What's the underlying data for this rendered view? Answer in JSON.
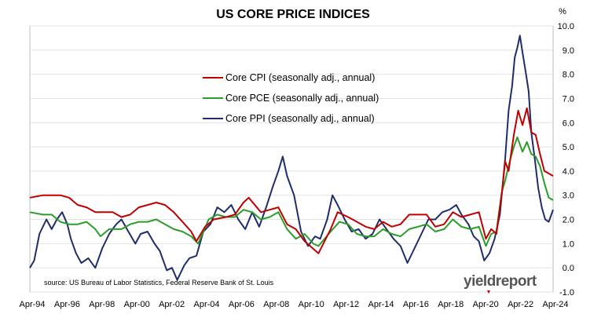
{
  "chart_data": {
    "type": "line",
    "title": "US CORE PRICE INDICES",
    "unit_label": "%",
    "source": "source: US Bureau of Labor Statistics, Federal Reserve Bank of St. Louis",
    "logo_text": "yieldreport",
    "x_tick_labels": [
      "Apr-94",
      "Apr-96",
      "Apr-98",
      "Apr-00",
      "Apr-02",
      "Apr-04",
      "Apr-06",
      "Apr-08",
      "Apr-10",
      "Apr-12",
      "Apr-14",
      "Apr-16",
      "Apr-18",
      "Apr-20",
      "Apr-22",
      "Apr-24"
    ],
    "xlim": [
      1994.25,
      2024.25
    ],
    "ylim": [
      -1.0,
      10.0
    ],
    "y_ticks": [
      "10.0",
      "9.0",
      "8.0",
      "7.0",
      "6.0",
      "5.0",
      "4.0",
      "3.0",
      "2.0",
      "1.0",
      "0.0",
      "-1.0"
    ],
    "y_tick_values": [
      10,
      9,
      8,
      7,
      6,
      5,
      4,
      3,
      2,
      1,
      0,
      -1
    ],
    "legend_position": "upper-left-center",
    "series": [
      {
        "name": "Core CPI (seasonally adj., annual)",
        "color": "#c00000",
        "points": [
          [
            1994.25,
            2.9
          ],
          [
            1995.0,
            3.0
          ],
          [
            1995.5,
            3.0
          ],
          [
            1996.0,
            3.0
          ],
          [
            1996.5,
            2.9
          ],
          [
            1997.0,
            2.6
          ],
          [
            1997.5,
            2.5
          ],
          [
            1998.0,
            2.3
          ],
          [
            1998.5,
            2.3
          ],
          [
            1999.0,
            2.3
          ],
          [
            1999.5,
            2.1
          ],
          [
            2000.0,
            2.2
          ],
          [
            2000.5,
            2.5
          ],
          [
            2001.0,
            2.6
          ],
          [
            2001.5,
            2.7
          ],
          [
            2002.0,
            2.6
          ],
          [
            2002.5,
            2.3
          ],
          [
            2003.0,
            1.9
          ],
          [
            2003.5,
            1.5
          ],
          [
            2003.8,
            1.1
          ],
          [
            2004.3,
            1.7
          ],
          [
            2004.8,
            2.0
          ],
          [
            2005.5,
            2.1
          ],
          [
            2006.0,
            2.2
          ],
          [
            2006.5,
            2.7
          ],
          [
            2006.8,
            2.9
          ],
          [
            2007.5,
            2.3
          ],
          [
            2008.0,
            2.4
          ],
          [
            2008.5,
            2.5
          ],
          [
            2009.0,
            1.8
          ],
          [
            2009.5,
            1.6
          ],
          [
            2010.0,
            1.1
          ],
          [
            2010.8,
            0.6
          ],
          [
            2011.5,
            1.6
          ],
          [
            2011.9,
            2.3
          ],
          [
            2012.5,
            2.1
          ],
          [
            2013.0,
            1.9
          ],
          [
            2013.5,
            1.7
          ],
          [
            2014.0,
            1.6
          ],
          [
            2014.5,
            1.9
          ],
          [
            2015.0,
            1.7
          ],
          [
            2015.5,
            1.8
          ],
          [
            2016.0,
            2.2
          ],
          [
            2016.5,
            2.2
          ],
          [
            2017.0,
            2.2
          ],
          [
            2017.5,
            1.7
          ],
          [
            2018.0,
            1.8
          ],
          [
            2018.5,
            2.3
          ],
          [
            2019.0,
            2.1
          ],
          [
            2019.5,
            2.2
          ],
          [
            2020.0,
            2.3
          ],
          [
            2020.4,
            1.2
          ],
          [
            2020.7,
            1.6
          ],
          [
            2021.0,
            1.4
          ],
          [
            2021.3,
            3.0
          ],
          [
            2021.5,
            4.4
          ],
          [
            2021.7,
            4.0
          ],
          [
            2022.0,
            5.5
          ],
          [
            2022.25,
            6.5
          ],
          [
            2022.5,
            5.9
          ],
          [
            2022.75,
            6.6
          ],
          [
            2023.0,
            5.6
          ],
          [
            2023.25,
            5.5
          ],
          [
            2023.5,
            4.7
          ],
          [
            2023.75,
            4.0
          ],
          [
            2024.0,
            3.9
          ],
          [
            2024.25,
            3.8
          ]
        ]
      },
      {
        "name": "Core PCE (seasonally adj., annual)",
        "color": "#2a9d2a",
        "points": [
          [
            1994.25,
            2.3
          ],
          [
            1995.0,
            2.2
          ],
          [
            1995.5,
            2.2
          ],
          [
            1996.0,
            1.9
          ],
          [
            1996.5,
            1.8
          ],
          [
            1997.0,
            1.8
          ],
          [
            1997.5,
            1.9
          ],
          [
            1998.0,
            1.6
          ],
          [
            1998.3,
            1.3
          ],
          [
            1998.8,
            1.6
          ],
          [
            1999.5,
            1.6
          ],
          [
            2000.0,
            1.8
          ],
          [
            2000.5,
            1.9
          ],
          [
            2001.0,
            1.9
          ],
          [
            2001.5,
            2.0
          ],
          [
            2002.0,
            1.8
          ],
          [
            2002.5,
            1.6
          ],
          [
            2003.0,
            1.5
          ],
          [
            2003.5,
            1.3
          ],
          [
            2003.9,
            1.0
          ],
          [
            2004.5,
            2.0
          ],
          [
            2005.0,
            2.2
          ],
          [
            2005.5,
            2.1
          ],
          [
            2006.0,
            2.1
          ],
          [
            2006.5,
            2.4
          ],
          [
            2007.0,
            2.3
          ],
          [
            2007.5,
            2.0
          ],
          [
            2008.0,
            2.1
          ],
          [
            2008.5,
            2.3
          ],
          [
            2009.0,
            1.6
          ],
          [
            2009.5,
            1.2
          ],
          [
            2010.0,
            1.4
          ],
          [
            2010.5,
            1.0
          ],
          [
            2010.8,
            0.9
          ],
          [
            2011.5,
            1.5
          ],
          [
            2012.0,
            1.9
          ],
          [
            2012.5,
            1.8
          ],
          [
            2013.0,
            1.4
          ],
          [
            2013.5,
            1.3
          ],
          [
            2014.0,
            1.3
          ],
          [
            2014.5,
            1.6
          ],
          [
            2015.0,
            1.4
          ],
          [
            2015.5,
            1.3
          ],
          [
            2016.0,
            1.6
          ],
          [
            2016.5,
            1.7
          ],
          [
            2017.0,
            1.8
          ],
          [
            2017.5,
            1.5
          ],
          [
            2018.0,
            1.6
          ],
          [
            2018.5,
            2.0
          ],
          [
            2019.0,
            1.7
          ],
          [
            2019.5,
            1.6
          ],
          [
            2020.0,
            1.7
          ],
          [
            2020.4,
            0.9
          ],
          [
            2020.7,
            1.4
          ],
          [
            2021.0,
            1.5
          ],
          [
            2021.3,
            3.1
          ],
          [
            2021.5,
            3.6
          ],
          [
            2021.8,
            4.5
          ],
          [
            2022.0,
            5.0
          ],
          [
            2022.2,
            5.4
          ],
          [
            2022.5,
            4.8
          ],
          [
            2022.75,
            5.2
          ],
          [
            2023.0,
            4.7
          ],
          [
            2023.25,
            4.6
          ],
          [
            2023.5,
            4.2
          ],
          [
            2023.75,
            3.5
          ],
          [
            2024.0,
            2.9
          ],
          [
            2024.25,
            2.8
          ]
        ]
      },
      {
        "name": "Core PPI (seasonally adj., annual)",
        "color": "#1f2d6b",
        "points": [
          [
            1994.25,
            0.0
          ],
          [
            1994.5,
            0.3
          ],
          [
            1994.8,
            1.4
          ],
          [
            1995.2,
            2.0
          ],
          [
            1995.5,
            1.6
          ],
          [
            1995.8,
            2.0
          ],
          [
            1996.1,
            2.3
          ],
          [
            1996.4,
            1.8
          ],
          [
            1996.6,
            1.2
          ],
          [
            1996.9,
            0.6
          ],
          [
            1997.2,
            0.2
          ],
          [
            1997.6,
            0.4
          ],
          [
            1998.0,
            0.0
          ],
          [
            1998.4,
            0.8
          ],
          [
            1998.8,
            1.4
          ],
          [
            1999.2,
            1.8
          ],
          [
            1999.5,
            2.0
          ],
          [
            1999.9,
            1.5
          ],
          [
            2000.3,
            1.0
          ],
          [
            2000.6,
            1.4
          ],
          [
            2001.0,
            1.5
          ],
          [
            2001.4,
            1.0
          ],
          [
            2001.7,
            0.7
          ],
          [
            2002.1,
            -0.1
          ],
          [
            2002.4,
            0.0
          ],
          [
            2002.7,
            -0.5
          ],
          [
            2003.1,
            0.1
          ],
          [
            2003.4,
            0.4
          ],
          [
            2003.8,
            0.5
          ],
          [
            2004.2,
            1.5
          ],
          [
            2004.6,
            1.8
          ],
          [
            2005.0,
            2.5
          ],
          [
            2005.4,
            2.3
          ],
          [
            2005.8,
            2.6
          ],
          [
            2006.2,
            2.0
          ],
          [
            2006.6,
            1.6
          ],
          [
            2007.0,
            2.3
          ],
          [
            2007.4,
            1.7
          ],
          [
            2007.8,
            2.5
          ],
          [
            2008.2,
            3.4
          ],
          [
            2008.5,
            4.0
          ],
          [
            2008.75,
            4.6
          ],
          [
            2009.0,
            3.8
          ],
          [
            2009.4,
            3.0
          ],
          [
            2009.8,
            1.5
          ],
          [
            2010.2,
            0.9
          ],
          [
            2010.6,
            1.3
          ],
          [
            2010.9,
            1.2
          ],
          [
            2011.3,
            2.0
          ],
          [
            2011.6,
            3.0
          ],
          [
            2011.9,
            2.6
          ],
          [
            2012.3,
            2.0
          ],
          [
            2012.7,
            1.5
          ],
          [
            2013.1,
            1.6
          ],
          [
            2013.5,
            1.2
          ],
          [
            2013.9,
            1.4
          ],
          [
            2014.3,
            2.0
          ],
          [
            2014.7,
            1.6
          ],
          [
            2015.1,
            1.2
          ],
          [
            2015.5,
            0.9
          ],
          [
            2015.9,
            0.2
          ],
          [
            2016.3,
            0.8
          ],
          [
            2016.7,
            1.4
          ],
          [
            2017.1,
            2.0
          ],
          [
            2017.5,
            2.0
          ],
          [
            2017.9,
            2.3
          ],
          [
            2018.3,
            2.4
          ],
          [
            2018.7,
            2.6
          ],
          [
            2019.0,
            2.2
          ],
          [
            2019.4,
            1.8
          ],
          [
            2019.7,
            1.3
          ],
          [
            2020.0,
            1.1
          ],
          [
            2020.3,
            0.3
          ],
          [
            2020.6,
            0.6
          ],
          [
            2020.9,
            1.2
          ],
          [
            2021.2,
            2.2
          ],
          [
            2021.5,
            4.5
          ],
          [
            2021.7,
            6.5
          ],
          [
            2021.9,
            7.5
          ],
          [
            2022.05,
            8.7
          ],
          [
            2022.2,
            9.1
          ],
          [
            2022.35,
            9.6
          ],
          [
            2022.5,
            8.9
          ],
          [
            2022.7,
            8.0
          ],
          [
            2022.85,
            7.3
          ],
          [
            2023.0,
            5.6
          ],
          [
            2023.2,
            4.5
          ],
          [
            2023.4,
            3.3
          ],
          [
            2023.6,
            2.5
          ],
          [
            2023.8,
            2.0
          ],
          [
            2024.0,
            1.9
          ],
          [
            2024.25,
            2.4
          ]
        ]
      }
    ]
  }
}
